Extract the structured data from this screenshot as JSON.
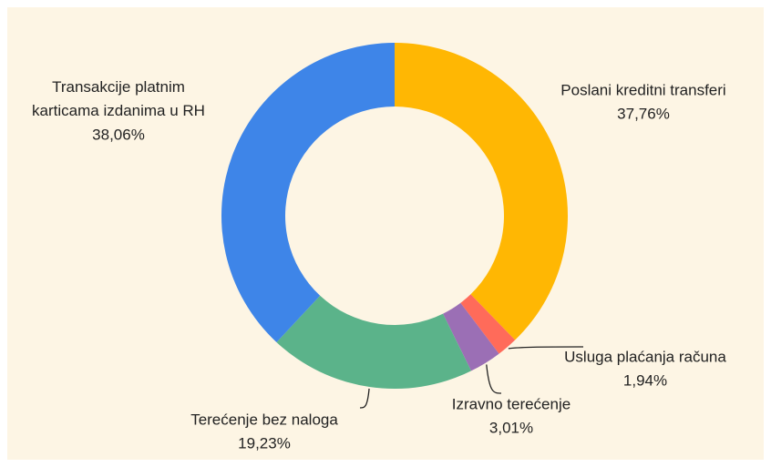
{
  "chart_data": {
    "type": "pie",
    "categories": [
      "Poslani kreditni transferi",
      "Usluga plaćanja računa",
      "Izravno terećenje",
      "Terećenje bez naloga",
      "Transakcije platnim karticama izdanima u RH"
    ],
    "values": [
      37.76,
      1.94,
      3.01,
      19.23,
      38.06
    ],
    "value_labels": [
      "37,76%",
      "1,94%",
      "3,01%",
      "19,23%",
      "38,06%"
    ],
    "colors": [
      "#ffb703",
      "#ff6b5a",
      "#9b6fb5",
      "#5bb38a",
      "#3e85e8"
    ]
  }
}
